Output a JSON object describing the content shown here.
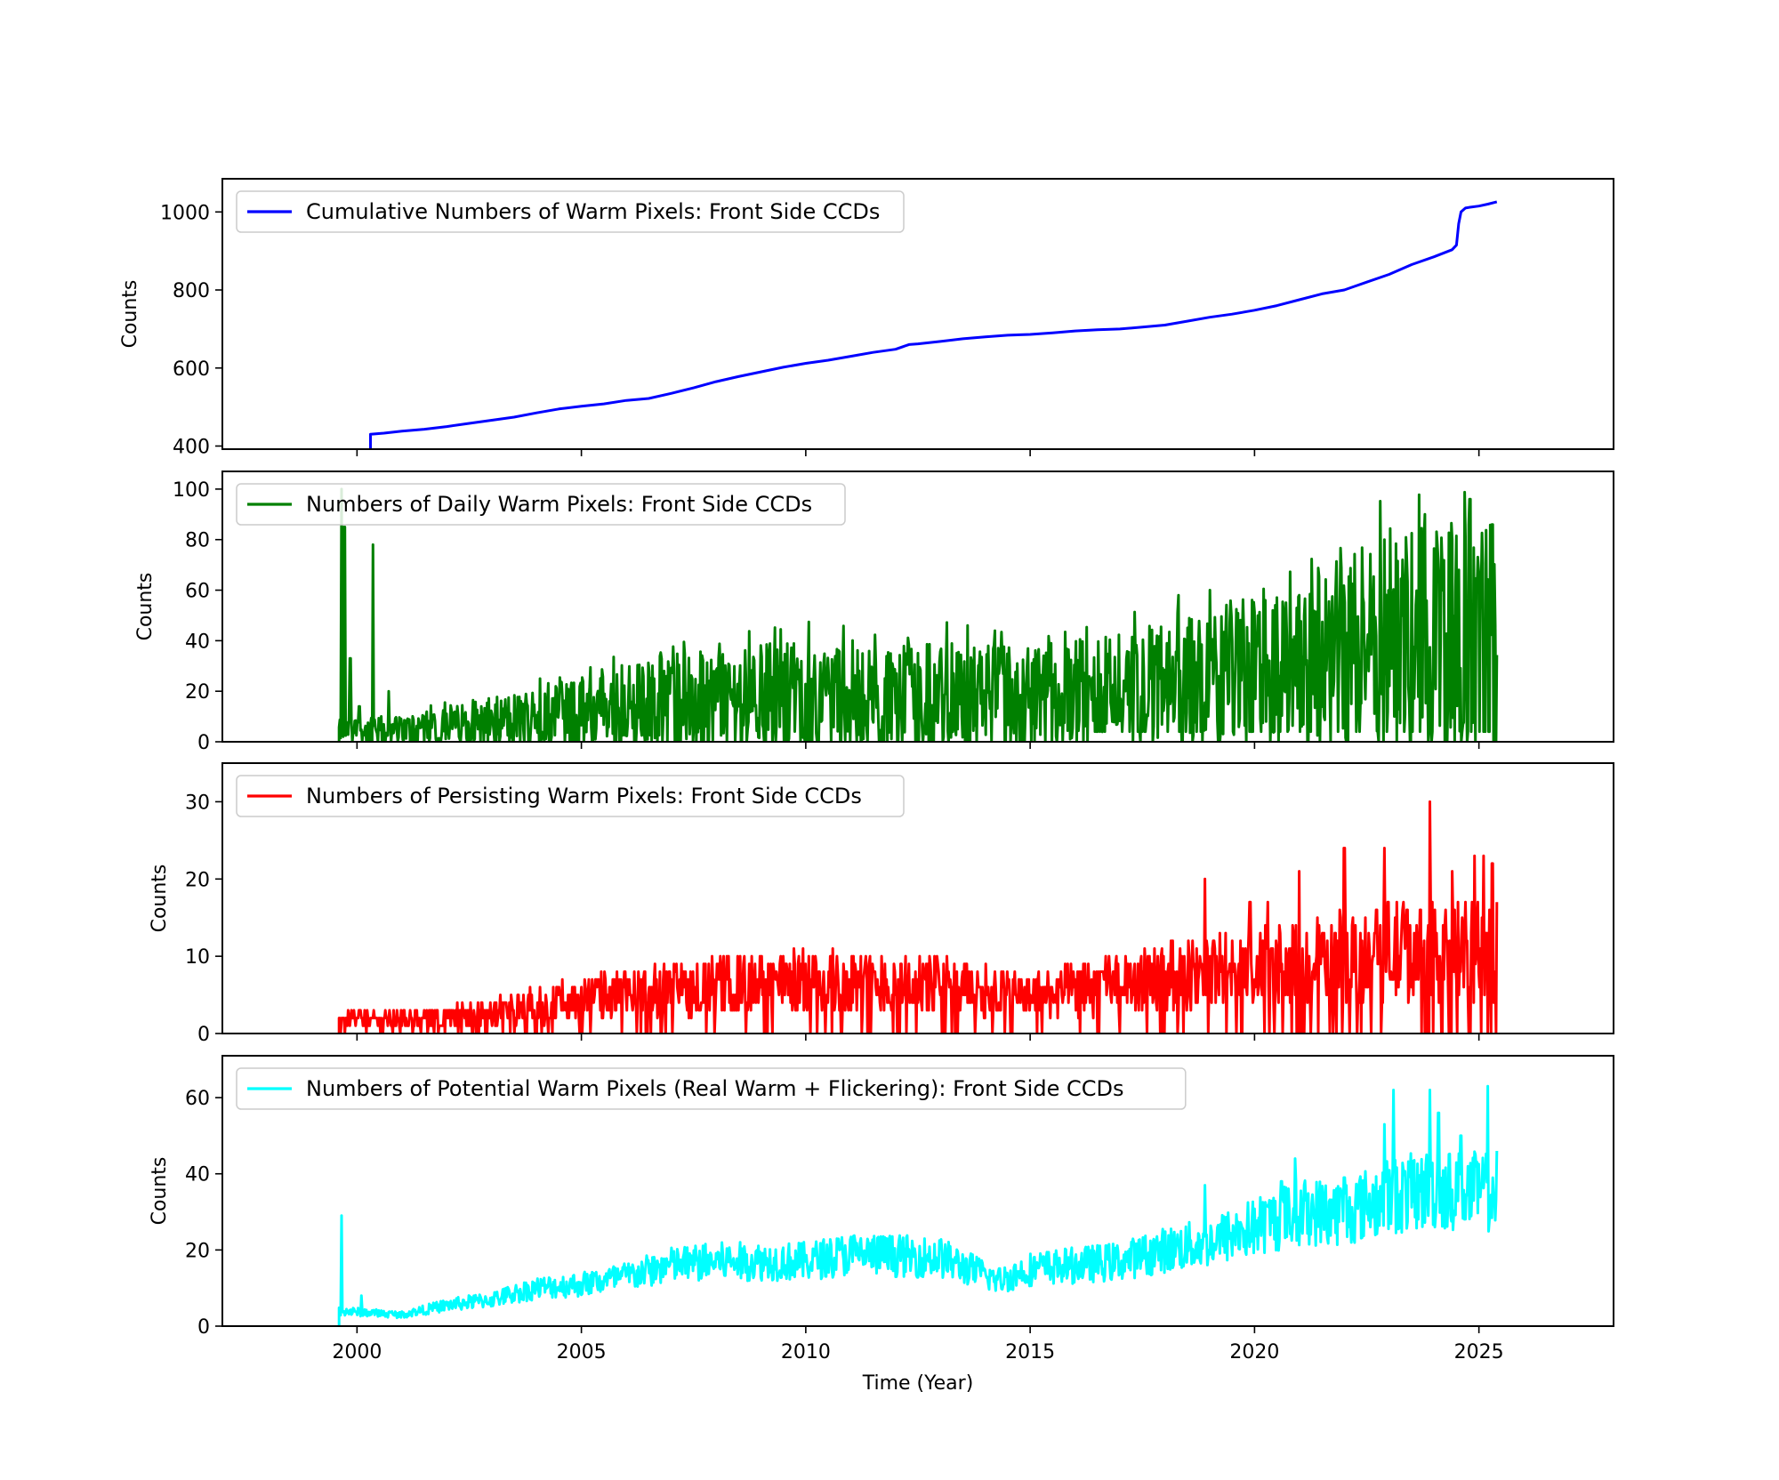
{
  "xlabel": "Time (Year)",
  "x_ticks": [
    2000,
    2005,
    2010,
    2015,
    2020,
    2025
  ],
  "x_range": [
    1997,
    2028
  ],
  "chart_data": [
    {
      "type": "line",
      "legend": "Cumulative Numbers of Warm Pixels: Front Side CCDs",
      "legend_position": "top-left",
      "ylabel": "Counts",
      "ylim": [
        392,
        1085
      ],
      "y_ticks": [
        400,
        600,
        800,
        1000
      ],
      "color": "#0000ff",
      "x": [
        2000.3,
        2000.3,
        2000.6,
        2001.0,
        2001.5,
        2002.0,
        2002.5,
        2003.0,
        2003.5,
        2004.0,
        2004.5,
        2005.0,
        2005.5,
        2006.0,
        2006.5,
        2007.0,
        2007.5,
        2008.0,
        2008.5,
        2009.0,
        2009.5,
        2010.0,
        2010.5,
        2011.0,
        2011.5,
        2012.0,
        2012.3,
        2012.5,
        2013.0,
        2013.5,
        2014.0,
        2014.5,
        2015.0,
        2015.5,
        2016.0,
        2016.5,
        2017.0,
        2017.5,
        2018.0,
        2018.5,
        2019.0,
        2019.5,
        2020.0,
        2020.5,
        2021.0,
        2021.5,
        2022.0,
        2022.5,
        2023.0,
        2023.5,
        2024.0,
        2024.4,
        2024.5,
        2024.55,
        2024.6,
        2024.7,
        2024.8,
        2025.0,
        2025.2,
        2025.4
      ],
      "y": [
        392,
        430,
        433,
        438,
        443,
        450,
        458,
        466,
        474,
        485,
        495,
        502,
        508,
        517,
        522,
        535,
        549,
        565,
        578,
        590,
        602,
        612,
        620,
        630,
        640,
        648,
        660,
        662,
        668,
        675,
        680,
        684,
        686,
        690,
        695,
        698,
        700,
        705,
        710,
        720,
        730,
        738,
        748,
        760,
        775,
        790,
        800,
        820,
        840,
        865,
        885,
        903,
        915,
        970,
        1000,
        1010,
        1012,
        1015,
        1020,
        1026
      ]
    },
    {
      "type": "line",
      "legend": "Numbers of Daily Warm Pixels: Front Side CCDs",
      "legend_position": "top-left",
      "ylabel": "Counts",
      "ylim": [
        0,
        107
      ],
      "y_ticks": [
        0,
        20,
        40,
        60,
        80,
        100
      ],
      "color": "#008000",
      "x_start": 1999.6,
      "x_end": 2025.4,
      "amplitude_trend": [
        [
          1999.6,
          6
        ],
        [
          2001,
          7
        ],
        [
          2003,
          12
        ],
        [
          2005,
          18
        ],
        [
          2007,
          24
        ],
        [
          2010,
          28
        ],
        [
          2013,
          28
        ],
        [
          2015,
          26
        ],
        [
          2017,
          30
        ],
        [
          2019,
          36
        ],
        [
          2021,
          42
        ],
        [
          2023,
          58
        ],
        [
          2025.4,
          62
        ]
      ],
      "spikes": [
        [
          1999.65,
          100
        ],
        [
          1999.72,
          85
        ],
        [
          1999.85,
          33
        ],
        [
          2000.05,
          14
        ],
        [
          2000.35,
          78
        ],
        [
          2000.7,
          20
        ],
        [
          2018.3,
          58
        ],
        [
          2019.0,
          60
        ],
        [
          2020.4,
          52
        ],
        [
          2021.0,
          58
        ],
        [
          2022.2,
          62
        ],
        [
          2022.9,
          80
        ],
        [
          2023.3,
          72
        ],
        [
          2023.8,
          90
        ],
        [
          2024.4,
          80
        ],
        [
          2024.8,
          96
        ],
        [
          2025.3,
          86
        ]
      ]
    },
    {
      "type": "line",
      "legend": "Numbers of Persisting Warm Pixels: Front Side CCDs",
      "legend_position": "top-left",
      "ylabel": "Counts",
      "ylim": [
        0,
        35
      ],
      "y_ticks": [
        0,
        10,
        20,
        30
      ],
      "color": "#ff0000",
      "x_start": 1999.6,
      "x_end": 2025.4,
      "amplitude_trend": [
        [
          1999.6,
          2
        ],
        [
          2001,
          2
        ],
        [
          2003,
          3
        ],
        [
          2005,
          5
        ],
        [
          2007,
          6.5
        ],
        [
          2010,
          7.5
        ],
        [
          2013,
          7
        ],
        [
          2015,
          5.5
        ],
        [
          2017,
          7
        ],
        [
          2019,
          9
        ],
        [
          2021,
          10
        ],
        [
          2023,
          12
        ],
        [
          2025.4,
          12
        ]
      ],
      "spikes": [
        [
          2018.9,
          20
        ],
        [
          2019.9,
          17
        ],
        [
          2020.3,
          17
        ],
        [
          2021.0,
          21
        ],
        [
          2022.0,
          24
        ],
        [
          2022.9,
          24
        ],
        [
          2023.9,
          30
        ],
        [
          2024.4,
          21
        ],
        [
          2024.9,
          23
        ],
        [
          2025.1,
          23
        ],
        [
          2025.3,
          22
        ]
      ]
    },
    {
      "type": "line",
      "legend": "Numbers of Potential Warm Pixels (Real Warm + Flickering): Front Side CCDs",
      "legend_position": "top-left",
      "ylabel": "Counts",
      "ylim": [
        0,
        71
      ],
      "y_ticks": [
        0,
        20,
        40,
        60
      ],
      "color": "#00ffff",
      "x_start": 1999.6,
      "x_end": 2025.4,
      "amplitude_trend": [
        [
          1999.6,
          4
        ],
        [
          2001,
          3
        ],
        [
          2002,
          5.5
        ],
        [
          2003,
          7
        ],
        [
          2004,
          10
        ],
        [
          2005,
          11
        ],
        [
          2006,
          13
        ],
        [
          2007,
          16
        ],
        [
          2008,
          17
        ],
        [
          2010,
          17
        ],
        [
          2011,
          19
        ],
        [
          2013,
          18
        ],
        [
          2014.3,
          12
        ],
        [
          2015,
          15
        ],
        [
          2016,
          16
        ],
        [
          2017,
          17
        ],
        [
          2018,
          20
        ],
        [
          2019,
          22
        ],
        [
          2020,
          26
        ],
        [
          2021,
          30
        ],
        [
          2022,
          30
        ],
        [
          2023,
          34
        ],
        [
          2024,
          36
        ],
        [
          2025.4,
          35
        ]
      ],
      "spikes": [
        [
          1999.65,
          29
        ],
        [
          2000.1,
          8
        ],
        [
          2018.9,
          37
        ],
        [
          2020.6,
          38
        ],
        [
          2020.9,
          44
        ],
        [
          2022.0,
          39
        ],
        [
          2022.9,
          53
        ],
        [
          2023.1,
          62
        ],
        [
          2023.9,
          62
        ],
        [
          2024.1,
          56
        ],
        [
          2024.6,
          50
        ],
        [
          2025.2,
          63
        ],
        [
          2025.4,
          46
        ]
      ]
    }
  ]
}
